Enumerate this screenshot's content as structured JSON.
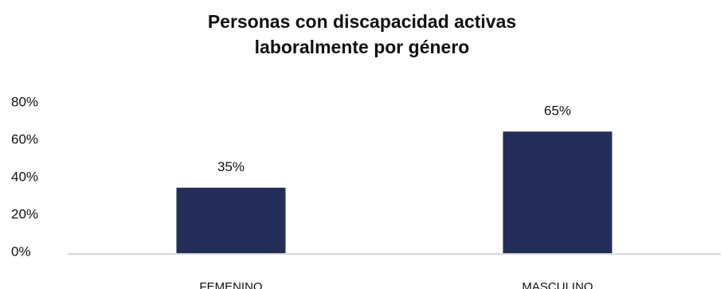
{
  "chart_data": {
    "type": "bar",
    "title": [
      "Personas con discapacidad activas",
      "laboralmente por género"
    ],
    "categories": [
      "FEMENINO",
      "MASCULINO"
    ],
    "values": [
      35,
      65
    ],
    "value_labels": [
      "35%",
      "65%"
    ],
    "ylim": [
      0,
      80
    ],
    "y_ticks": [
      0,
      20,
      40,
      60,
      80
    ],
    "y_tick_labels": [
      "0%",
      "20%",
      "40%",
      "60%",
      "80%"
    ],
    "bar_color": "#232d57",
    "axis_color": "#d9d9d9",
    "grid": false,
    "legend": "none"
  }
}
